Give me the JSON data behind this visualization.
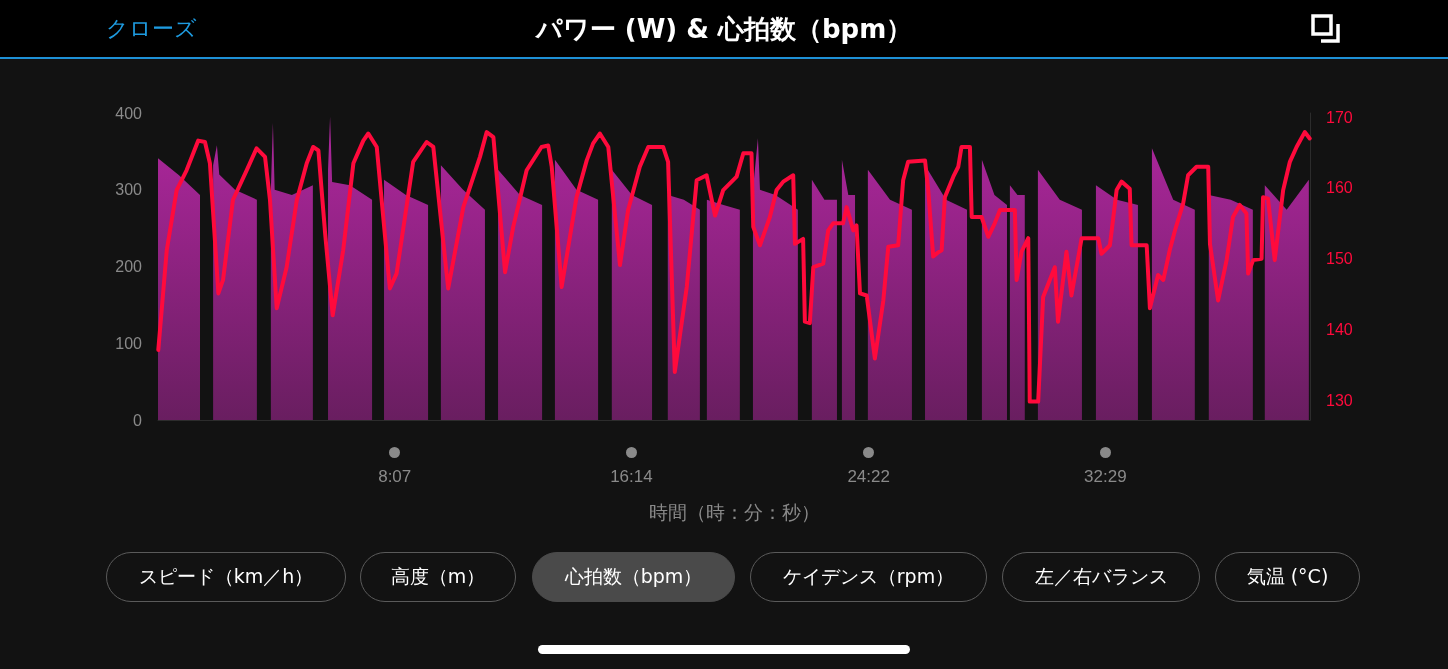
{
  "chart_data": {
    "type": "area",
    "title": "パワー (W) & 心拍数（bpm）",
    "xlabel": "時間（時：分：秒）",
    "annotations": [
      "クローズ",
      "スピード（km／h）",
      "高度（m）",
      "心拍数（bpm）",
      "ケイデンス（rpm）",
      "左／右バランス",
      "気温 (°C)"
    ],
    "xlim": [
      0,
      39.5
    ],
    "xticks": [
      {
        "value": 8.117,
        "label": "8:07"
      },
      {
        "value": 16.233,
        "label": "16:14"
      },
      {
        "value": 24.367,
        "label": "24:22"
      },
      {
        "value": 32.483,
        "label": "32:29"
      }
    ],
    "ylim": [
      0,
      400
    ],
    "yticks": [
      0,
      100,
      200,
      300,
      400
    ],
    "y2lim": [
      127.2,
      170.6
    ],
    "y2ticks": [
      130,
      140,
      150,
      160,
      170
    ],
    "series": [
      {
        "type": "area",
        "color": "#b0279f",
        "x": [
          0,
          0,
          0.72,
          1.44,
          1.44,
          1.89,
          1.89,
          2.02,
          2.1,
          2.64,
          3.39,
          3.39,
          3.87,
          3.87,
          3.94,
          4.0,
          4.59,
          5.31,
          5.31,
          5.83,
          5.83,
          5.9,
          5.97,
          6.58,
          7.34,
          7.34,
          7.75,
          7.75,
          8.5,
          9.26,
          9.26,
          9.7,
          9.7,
          10.46,
          11.21,
          11.21,
          11.66,
          11.66,
          12.41,
          13.17,
          13.17,
          13.61,
          13.61,
          14.35,
          15.09,
          15.09,
          15.56,
          15.56,
          16.25,
          16.94,
          16.94,
          17.48,
          17.48,
          18.03,
          18.58,
          18.58,
          18.82,
          18.82,
          19.39,
          19.95,
          19.95,
          20.4,
          20.4,
          20.57,
          20.64,
          21.17,
          21.94,
          21.94,
          22.42,
          22.42,
          22.85,
          23.28,
          23.28,
          23.45,
          23.45,
          23.67,
          23.9,
          23.9,
          24.34,
          24.34,
          25.1,
          25.85,
          25.85,
          26.3,
          26.3,
          27.02,
          27.74,
          27.74,
          28.25,
          28.25,
          28.68,
          29.11,
          29.11,
          29.21,
          29.21,
          29.47,
          29.72,
          29.72,
          30.17,
          30.17,
          30.92,
          31.68,
          31.68,
          32.16,
          32.16,
          32.88,
          33.6,
          33.6,
          34.08,
          34.08,
          34.81,
          35.55,
          35.55,
          36.03,
          36.03,
          36.78,
          37.54,
          37.54,
          37.95,
          37.95,
          38.7,
          39.46,
          39.46
        ],
        "values": [
          0,
          341,
          319,
          293,
          0,
          0,
          332,
          358,
          320,
          300,
          287,
          0,
          0,
          300,
          387,
          300,
          293,
          306,
          0,
          0,
          326,
          395,
          310,
          306,
          287,
          0,
          0,
          313,
          293,
          280,
          0,
          0,
          332,
          300,
          274,
          0,
          0,
          326,
          293,
          280,
          0,
          0,
          339,
          300,
          287,
          0,
          0,
          326,
          293,
          280,
          0,
          0,
          293,
          287,
          274,
          0,
          0,
          287,
          280,
          274,
          0,
          0,
          300,
          367,
          300,
          293,
          274,
          0,
          0,
          313,
          287,
          287,
          0,
          0,
          339,
          293,
          293,
          0,
          0,
          326,
          287,
          274,
          0,
          0,
          332,
          287,
          274,
          0,
          0,
          339,
          293,
          280,
          0,
          0,
          306,
          293,
          293,
          0,
          0,
          326,
          287,
          274,
          0,
          0,
          306,
          287,
          280,
          0,
          0,
          354,
          287,
          274,
          0,
          0,
          293,
          287,
          274,
          0,
          0,
          306,
          274,
          313,
          0
        ]
      },
      {
        "type": "line",
        "axis": "y2",
        "color": "#ff0a3c",
        "x": [
          0.01,
          0.3,
          0.64,
          0.98,
          1.38,
          1.61,
          1.78,
          2.07,
          2.23,
          2.57,
          3.04,
          3.38,
          3.67,
          3.84,
          4.07,
          4.41,
          4.76,
          5.1,
          5.32,
          5.5,
          5.73,
          5.99,
          6.35,
          6.7,
          7.04,
          7.21,
          7.5,
          7.95,
          8.18,
          8.75,
          9.21,
          9.44,
          9.95,
          10.47,
          11.04,
          11.27,
          11.5,
          11.9,
          12.18,
          12.64,
          13.15,
          13.38,
          13.5,
          13.84,
          14.35,
          14.7,
          14.92,
          15.15,
          15.44,
          15.84,
          16.12,
          16.52,
          16.81,
          17.32,
          17.49,
          17.72,
          18.13,
          18.47,
          18.81,
          19.1,
          19.38,
          19.84,
          20.07,
          20.35,
          20.41,
          20.64,
          20.98,
          21.21,
          21.44,
          21.78,
          21.84,
          22.12,
          22.18,
          22.35,
          22.47,
          22.81,
          22.98,
          23.15,
          23.49,
          23.61,
          23.84,
          23.95,
          24.07,
          24.3,
          24.58,
          24.87,
          25.04,
          25.38,
          25.55,
          25.72,
          26.3,
          26.41,
          26.58,
          26.75,
          26.87,
          26.98,
          27.27,
          27.44,
          27.55,
          27.84,
          27.9,
          28.24,
          28.47,
          28.69,
          28.87,
          29.38,
          29.44,
          29.61,
          29.84,
          29.89,
          30.18,
          30.35,
          30.75,
          30.86,
          31.15,
          31.32,
          31.67,
          32.24,
          32.35,
          32.64,
          32.87,
          33.04,
          33.32,
          33.38,
          33.9,
          34.01,
          34.29,
          34.47,
          34.69,
          34.87,
          35.15,
          35.32,
          35.61,
          36.01,
          36.07,
          36.35,
          36.64,
          36.86,
          37.09,
          37.32,
          37.38,
          37.55,
          37.84,
          37.89,
          38.06,
          38.29,
          38.58,
          38.81,
          39.04,
          39.32,
          39.49
        ],
        "values": [
          137.1,
          151.2,
          159.7,
          162.5,
          166.7,
          166.5,
          163.5,
          145.1,
          147,
          158.3,
          162.5,
          165.6,
          164.4,
          158.3,
          143,
          148.8,
          158.3,
          163.5,
          165.8,
          165.3,
          153.6,
          142,
          151.2,
          163.5,
          166.7,
          167.7,
          165.8,
          145.8,
          147.9,
          163.7,
          166.5,
          165.8,
          145.8,
          157.3,
          164.4,
          167.9,
          167.2,
          148.1,
          154.5,
          162.5,
          165.8,
          166,
          163,
          146,
          158.7,
          163.9,
          166.3,
          167.7,
          165.8,
          149.1,
          156.9,
          163,
          165.8,
          165.8,
          163.7,
          134,
          146,
          161.1,
          161.8,
          156.1,
          159.7,
          161.6,
          164.9,
          164.9,
          154.5,
          151.9,
          155.9,
          159.7,
          160.9,
          161.8,
          152.1,
          152.8,
          141.1,
          140.9,
          148.8,
          149.3,
          154,
          155,
          155,
          157.3,
          154,
          154.7,
          145.1,
          144.8,
          135.9,
          144.1,
          151.7,
          151.9,
          161.1,
          163.7,
          163.9,
          159.7,
          150.3,
          150.9,
          151.2,
          158.7,
          161.6,
          163,
          165.8,
          165.8,
          155.9,
          155.9,
          153.1,
          155,
          156.9,
          156.9,
          147,
          151,
          152.9,
          129.8,
          129.8,
          144.6,
          148.8,
          141.1,
          151,
          144.8,
          152.9,
          152.9,
          150.7,
          151.9,
          159.7,
          160.9,
          159.9,
          151.9,
          151.9,
          143,
          147.7,
          147,
          151.2,
          154,
          157.8,
          161.8,
          163,
          163,
          152.1,
          144.1,
          149.8,
          155.9,
          157.6,
          156.4,
          147.9,
          149.8,
          150,
          158.7,
          158.5,
          149.8,
          159.7,
          163.7,
          165.8,
          167.9,
          167
        ]
      }
    ]
  }
}
